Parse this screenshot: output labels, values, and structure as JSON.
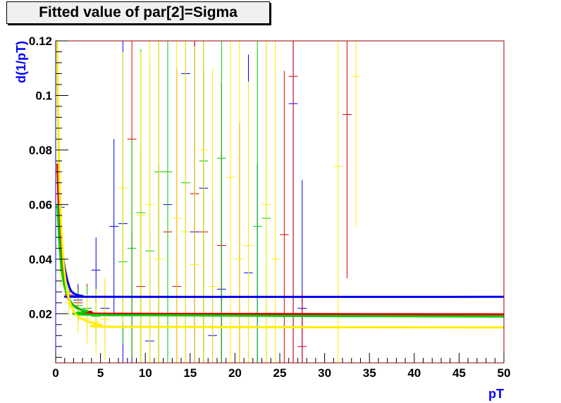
{
  "chart_data": {
    "type": "scatter",
    "title": "Fitted value of par[2]=Sigma",
    "xlabel": "pT",
    "ylabel": "d(1/pT)",
    "xlim": [
      0,
      50
    ],
    "ylim": [
      0.002,
      0.12
    ],
    "x_ticks": [
      0,
      5,
      10,
      15,
      20,
      25,
      30,
      35,
      40,
      45,
      50
    ],
    "y_ticks": [
      0.02,
      0.04,
      0.06,
      0.08,
      0.1,
      0.12
    ],
    "grid": false,
    "fit_curves": [
      {
        "color": "#0000ee",
        "y": [
          [
            0.3,
            0.059
          ],
          [
            0.6,
            0.047
          ],
          [
            1.0,
            0.037
          ],
          [
            1.5,
            0.03
          ],
          [
            2.0,
            0.0275
          ],
          [
            3.0,
            0.0265
          ],
          [
            5.0,
            0.0262
          ],
          [
            50.0,
            0.0262
          ]
        ]
      },
      {
        "color": "#dd0000",
        "y": [
          [
            0.2,
            0.075
          ],
          [
            0.5,
            0.045
          ],
          [
            1.0,
            0.031
          ],
          [
            1.5,
            0.025
          ],
          [
            2.5,
            0.022
          ],
          [
            4.0,
            0.0205
          ],
          [
            7.0,
            0.02
          ],
          [
            50.0,
            0.0198
          ]
        ]
      },
      {
        "color": "#00cc00",
        "y": [
          [
            0.2,
            0.06
          ],
          [
            0.5,
            0.042
          ],
          [
            1.0,
            0.03
          ],
          [
            2.0,
            0.023
          ],
          [
            3.5,
            0.021
          ],
          [
            6.0,
            0.0195
          ],
          [
            50.0,
            0.019
          ]
        ]
      },
      {
        "color": "#ffee00",
        "y": [
          [
            0.15,
            0.12
          ],
          [
            0.4,
            0.07
          ],
          [
            0.8,
            0.042
          ],
          [
            1.3,
            0.028
          ],
          [
            2.0,
            0.021
          ],
          [
            3.0,
            0.018
          ],
          [
            5.0,
            0.016
          ],
          [
            8.0,
            0.0152
          ],
          [
            50.0,
            0.015
          ]
        ]
      }
    ],
    "series": [
      {
        "color": "#0000ee",
        "points": [
          [
            0.5,
            0.059,
            0.004
          ],
          [
            1.5,
            0.028,
            0.003
          ],
          [
            2.5,
            0.025,
            0.006
          ],
          [
            3.5,
            0.022,
            0.008
          ],
          [
            4.5,
            0.036,
            0.012
          ],
          [
            5.5,
            0.022,
            0.01
          ],
          [
            6.5,
            0.052,
            0.032
          ],
          [
            7.5,
            0.053,
            0.085
          ],
          [
            8.5,
            0.02,
            0.03
          ],
          [
            10.5,
            0.01,
            0.04
          ],
          [
            12.5,
            0.06,
            0.06
          ],
          [
            14.5,
            0.108,
            0.12
          ],
          [
            15.5,
            0.05,
            0.07
          ],
          [
            16.5,
            0.066,
            0.09
          ],
          [
            17.5,
            0.012,
            0.05
          ],
          [
            18.5,
            0.029,
            0.05
          ],
          [
            21.5,
            0.035,
            0.08
          ],
          [
            22.5,
            0.015,
            0.06
          ],
          [
            26.5,
            0.097,
            0.12
          ],
          [
            27.5,
            0.022,
            0.047
          ]
        ]
      },
      {
        "color": "#dd0000",
        "points": [
          [
            1.5,
            0.027,
            0.004
          ],
          [
            2.5,
            0.024,
            0.006
          ],
          [
            3.5,
            0.021,
            0.01
          ],
          [
            5.5,
            0.02,
            0.012
          ],
          [
            8.5,
            0.084,
            0.08
          ],
          [
            9.5,
            0.03,
            0.05
          ],
          [
            11.5,
            0.015,
            0.06
          ],
          [
            12.5,
            0.05,
            0.07
          ],
          [
            13.5,
            0.03,
            0.08
          ],
          [
            15.5,
            0.064,
            0.09
          ],
          [
            16.5,
            0.05,
            0.06
          ],
          [
            18.5,
            0.045,
            0.06
          ],
          [
            20.5,
            0.02,
            0.07
          ],
          [
            25.5,
            0.049,
            0.06
          ],
          [
            26.5,
            0.107,
            0.12
          ],
          [
            27.5,
            0.008,
            0.02
          ],
          [
            32.5,
            0.093,
            0.06
          ]
        ]
      },
      {
        "color": "#00cc00",
        "points": [
          [
            1.5,
            0.026,
            0.004
          ],
          [
            2.5,
            0.023,
            0.006
          ],
          [
            3.5,
            0.022,
            0.008
          ],
          [
            4.5,
            0.019,
            0.01
          ],
          [
            7.5,
            0.039,
            0.03
          ],
          [
            8.5,
            0.044,
            0.04
          ],
          [
            9.5,
            0.057,
            0.06
          ],
          [
            10.5,
            0.043,
            0.07
          ],
          [
            11.5,
            0.072,
            0.08
          ],
          [
            12.5,
            0.072,
            0.09
          ],
          [
            14.5,
            0.068,
            0.07
          ],
          [
            16.5,
            0.076,
            0.09
          ],
          [
            18.5,
            0.077,
            0.1
          ],
          [
            22.5,
            0.052,
            0.07
          ],
          [
            23.5,
            0.055,
            0.07
          ]
        ]
      },
      {
        "color": "#ffee00",
        "points": [
          [
            0.5,
            0.045,
            0.015
          ],
          [
            1.5,
            0.024,
            0.005
          ],
          [
            2.5,
            0.02,
            0.007
          ],
          [
            3.5,
            0.018,
            0.009
          ],
          [
            4.5,
            0.017,
            0.012
          ],
          [
            5.5,
            0.018,
            0.015
          ],
          [
            7.5,
            0.066,
            0.05
          ],
          [
            9.5,
            0.056,
            0.06
          ],
          [
            10.5,
            0.06,
            0.07
          ],
          [
            11.5,
            0.04,
            0.08
          ],
          [
            13.5,
            0.055,
            0.09
          ],
          [
            14.5,
            0.05,
            0.09
          ],
          [
            15.5,
            0.038,
            0.08
          ],
          [
            16.5,
            0.08,
            0.1
          ],
          [
            17.5,
            0.03,
            0.08
          ],
          [
            19.5,
            0.07,
            0.09
          ],
          [
            20.5,
            0.04,
            0.08
          ],
          [
            21.5,
            0.045,
            0.06
          ],
          [
            23.5,
            0.06,
            0.1
          ],
          [
            24.5,
            0.04,
            0.08
          ],
          [
            31.5,
            0.074,
            0.12
          ],
          [
            33.5,
            0.107,
            0.055
          ]
        ]
      }
    ]
  },
  "colors": {
    "frame_left": "#0000ff",
    "frame_other": "#990000",
    "axis_title": "#0000ff",
    "title_bg": "#f0f0f0"
  }
}
